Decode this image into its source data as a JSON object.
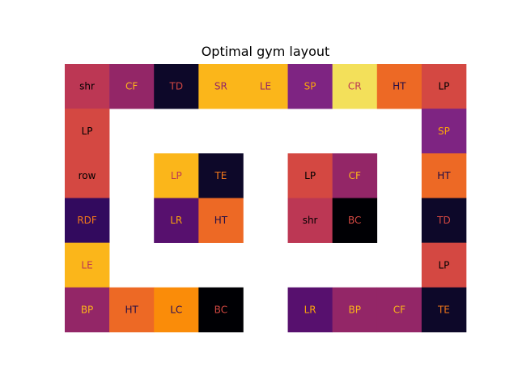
{
  "chart_data": {
    "type": "heatmap",
    "title": "Optimal gym layout",
    "xlabel": "",
    "ylabel": "",
    "colormap": "inferno",
    "axes_visible": false,
    "grid": false,
    "rows": 6,
    "cols": 9,
    "cells": [
      {
        "row": 0,
        "col": 0,
        "label": "shr",
        "color": "#bc3754",
        "text_color": "#000000"
      },
      {
        "row": 0,
        "col": 1,
        "label": "CF",
        "color": "#932667",
        "text_color": "#fcb519"
      },
      {
        "row": 0,
        "col": 2,
        "label": "TD",
        "color": "#0d0829",
        "text_color": "#d44842"
      },
      {
        "row": 0,
        "col": 3,
        "label": "SR",
        "color": "#fbb61a",
        "text_color": "#932667"
      },
      {
        "row": 0,
        "col": 4,
        "label": "LE",
        "color": "#fbb61a",
        "text_color": "#932667"
      },
      {
        "row": 0,
        "col": 5,
        "label": "SP",
        "color": "#7e2482",
        "text_color": "#fca50a"
      },
      {
        "row": 0,
        "col": 6,
        "label": "CR",
        "color": "#f3e05a",
        "text_color": "#bc3754"
      },
      {
        "row": 0,
        "col": 7,
        "label": "HT",
        "color": "#ed6925",
        "text_color": "#1f0c48"
      },
      {
        "row": 0,
        "col": 8,
        "label": "LP",
        "color": "#d44842",
        "text_color": "#000000"
      },
      {
        "row": 1,
        "col": 0,
        "label": "LP",
        "color": "#d44842",
        "text_color": "#000000"
      },
      {
        "row": 1,
        "col": 8,
        "label": "SP",
        "color": "#7e2482",
        "text_color": "#fca50a"
      },
      {
        "row": 2,
        "col": 0,
        "label": "row",
        "color": "#d44842",
        "text_color": "#000000"
      },
      {
        "row": 2,
        "col": 2,
        "label": "LP",
        "color": "#fbb61a",
        "text_color": "#bc3754"
      },
      {
        "row": 2,
        "col": 3,
        "label": "TE",
        "color": "#0d0829",
        "text_color": "#f37819"
      },
      {
        "row": 2,
        "col": 5,
        "label": "LP",
        "color": "#d44842",
        "text_color": "#000000"
      },
      {
        "row": 2,
        "col": 6,
        "label": "CF",
        "color": "#932667",
        "text_color": "#fcb519"
      },
      {
        "row": 2,
        "col": 8,
        "label": "HT",
        "color": "#ed6925",
        "text_color": "#1f0c48"
      },
      {
        "row": 3,
        "col": 0,
        "label": "RDF",
        "color": "#320a5e",
        "text_color": "#f37819"
      },
      {
        "row": 3,
        "col": 2,
        "label": "LR",
        "color": "#57106e",
        "text_color": "#fca50a"
      },
      {
        "row": 3,
        "col": 3,
        "label": "HT",
        "color": "#ed6925",
        "text_color": "#1f0c48"
      },
      {
        "row": 3,
        "col": 5,
        "label": "shr",
        "color": "#bc3754",
        "text_color": "#000000"
      },
      {
        "row": 3,
        "col": 6,
        "label": "BC",
        "color": "#000004",
        "text_color": "#d44842"
      },
      {
        "row": 3,
        "col": 8,
        "label": "TD",
        "color": "#0d0829",
        "text_color": "#d44842"
      },
      {
        "row": 4,
        "col": 0,
        "label": "LE",
        "color": "#fbb61a",
        "text_color": "#bc3754"
      },
      {
        "row": 4,
        "col": 8,
        "label": "LP",
        "color": "#d44842",
        "text_color": "#000000"
      },
      {
        "row": 5,
        "col": 0,
        "label": "BP",
        "color": "#932667",
        "text_color": "#fcb519"
      },
      {
        "row": 5,
        "col": 1,
        "label": "HT",
        "color": "#ed6925",
        "text_color": "#1f0c48"
      },
      {
        "row": 5,
        "col": 2,
        "label": "LC",
        "color": "#fa8c09",
        "text_color": "#2a0b57"
      },
      {
        "row": 5,
        "col": 3,
        "label": "BC",
        "color": "#000004",
        "text_color": "#d44842"
      },
      {
        "row": 5,
        "col": 5,
        "label": "LR",
        "color": "#57106e",
        "text_color": "#fca50a"
      },
      {
        "row": 5,
        "col": 6,
        "label": "BP",
        "color": "#932667",
        "text_color": "#fcb519"
      },
      {
        "row": 5,
        "col": 7,
        "label": "CF",
        "color": "#932667",
        "text_color": "#fcb519"
      },
      {
        "row": 5,
        "col": 8,
        "label": "TE",
        "color": "#0d0829",
        "text_color": "#f37819"
      }
    ]
  }
}
